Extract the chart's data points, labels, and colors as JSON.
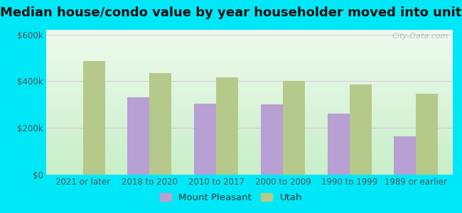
{
  "title": "Median house/condo value by year householder moved into unit",
  "categories": [
    "2021 or later",
    "2018 to 2020",
    "2010 to 2017",
    "2000 to 2009",
    "1990 to 1999",
    "1989 or earlier"
  ],
  "mount_pleasant": [
    null,
    330000,
    305000,
    300000,
    262000,
    165000
  ],
  "utah": [
    487000,
    435000,
    415000,
    400000,
    385000,
    345000
  ],
  "bar_color_mp": "#b89fd4",
  "bar_color_utah": "#b5c98a",
  "background_outer": "#00e8f8",
  "grad_top": "#edfaed",
  "grad_bottom": "#c8eec8",
  "yticks": [
    0,
    200000,
    400000,
    600000
  ],
  "ytick_labels": [
    "$0",
    "$200k",
    "$400k",
    "$600k"
  ],
  "ylim": [
    0,
    620000
  ],
  "watermark": "City-Data.com",
  "legend_mp": "Mount Pleasant",
  "legend_utah": "Utah",
  "title_fontsize": 13,
  "tick_fontsize": 8.5,
  "legend_fontsize": 9.5
}
